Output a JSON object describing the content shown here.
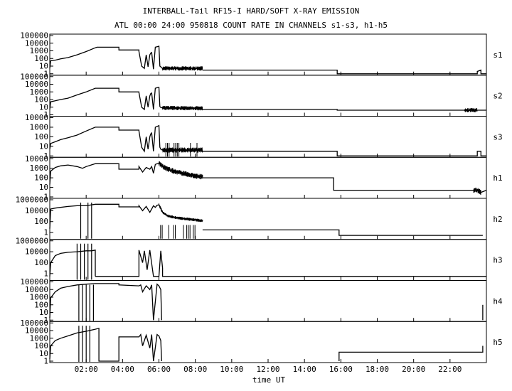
{
  "chart_data": {
    "type": "line",
    "title": "INTERBALL-Tail RF15-I HARD/SOFT X-RAY EMISSION",
    "subtitle": "ATL 00:00 24:00 950818  COUNT RATE IN CHANNELS s1-s3, h1-h5",
    "xlabel": "time UT",
    "xlim": [
      0,
      24
    ],
    "x_ticks": [
      "02:00",
      "04:00",
      "06:00",
      "08:00",
      "10:00",
      "12:00",
      "14:00",
      "16:00",
      "18:00",
      "20:00",
      "22:00"
    ],
    "x_tick_hours": [
      2,
      4,
      6,
      8,
      10,
      12,
      14,
      16,
      18,
      20,
      22
    ],
    "y_scale": "log",
    "panels": [
      {
        "name": "s1",
        "ylim": [
          1,
          100000
        ],
        "y_ticks": [
          "100000",
          "10000",
          "1000",
          "100",
          "10",
          "1"
        ],
        "y_tick_values": [
          100000,
          10000,
          1000,
          100,
          10,
          1
        ],
        "segments": [
          {
            "x": [
              0,
              0.05,
              0.3,
              0.6,
              1.0,
              1.5,
              2.0,
              2.5,
              2.6,
              3.8,
              3.8,
              4.9,
              4.9,
              5.05,
              5.2,
              5.3,
              5.4,
              5.5,
              5.55,
              5.6,
              5.7,
              5.8,
              5.9,
              6.0,
              6.05,
              6.1,
              6.15,
              6.2,
              8.4
            ],
            "y": [
              5,
              50,
              60,
              90,
              130,
              300,
              800,
              2500,
              3000,
              3000,
              1300,
              1300,
              800,
              10,
              5,
              300,
              8,
              300,
              500,
              600,
              4,
              3000,
              3500,
              4000,
              10,
              8,
              6,
              5,
              5
            ],
            "noise": [
              6.2,
              8.4
            ]
          },
          {
            "x": [
              8.4,
              15.8,
              15.8,
              23.5,
              23.5,
              23.7,
              23.7,
              24
            ],
            "y": [
              3,
              3,
              1,
              1,
              2,
              3,
              1,
              1
            ]
          }
        ]
      },
      {
        "name": "s2",
        "ylim": [
          1,
          100000
        ],
        "y_ticks": [
          "100000",
          "10000",
          "1000",
          "100",
          "10",
          "1"
        ],
        "y_tick_values": [
          100000,
          10000,
          1000,
          100,
          10,
          1
        ],
        "segments": [
          {
            "x": [
              0,
              0.05,
              0.3,
              0.6,
              1.0,
              1.5,
              2.0,
              2.5,
              2.6,
              3.8,
              3.8,
              4.9,
              4.9,
              5.05,
              5.2,
              5.3,
              5.4,
              5.5,
              5.55,
              5.6,
              5.7,
              5.8,
              5.9,
              6.0,
              6.05,
              6.1,
              6.2,
              8.4
            ],
            "y": [
              5,
              50,
              70,
              100,
              150,
              400,
              1000,
              3000,
              3000,
              3000,
              1000,
              1000,
              800,
              10,
              5,
              300,
              10,
              300,
              600,
              700,
              5,
              3000,
              3500,
              4000,
              12,
              9,
              8,
              7
            ],
            "noise": [
              6.2,
              8.4
            ]
          },
          {
            "x": [
              8.4,
              15.8,
              15.8,
              22.8,
              23.5,
              24
            ],
            "y": [
              5,
              5,
              4,
              4,
              4,
              4
            ],
            "noise": [
              22.8,
              23.5
            ]
          }
        ]
      },
      {
        "name": "s3",
        "ylim": [
          1,
          10000
        ],
        "y_ticks": [
          "10000",
          "1000",
          "100",
          "10",
          "1"
        ],
        "y_tick_values": [
          10000,
          1000,
          100,
          10,
          1
        ],
        "segments": [
          {
            "x": [
              0,
              0.05,
              0.3,
              0.6,
              1.0,
              1.5,
              2.0,
              2.5,
              2.6,
              3.8,
              3.8,
              4.9,
              4.9,
              5.05,
              5.2,
              5.3,
              5.4,
              5.5,
              5.55,
              5.6,
              5.7,
              5.8,
              5.9,
              6.0,
              6.05,
              6.1,
              6.2,
              8.4
            ],
            "y": [
              5,
              20,
              30,
              50,
              80,
              150,
              400,
              1000,
              1000,
              1000,
              500,
              500,
              400,
              8,
              3,
              100,
              5,
              100,
              200,
              250,
              3,
              1000,
              1200,
              1500,
              8,
              5,
              4,
              4
            ],
            "noise": [
              6.2,
              8.4
            ],
            "spikes_down": [
              6.2,
              8.4
            ]
          },
          {
            "x": [
              8.4,
              15.8,
              15.8,
              23.5,
              23.5,
              23.7,
              23.7,
              24
            ],
            "y": [
              3,
              3,
              1,
              1,
              3,
              3,
              1,
              1
            ]
          }
        ]
      },
      {
        "name": "h1",
        "ylim": [
          1,
          10000
        ],
        "y_ticks": [
          "10000",
          "1000",
          "100",
          "10",
          "1"
        ],
        "y_tick_values": [
          10000,
          1000,
          100,
          10,
          1
        ],
        "segments": [
          {
            "x": [
              0,
              0.05,
              0.3,
              0.6,
              1.0,
              1.5,
              1.8,
              2.0,
              2.5,
              3.8,
              3.8,
              4.9,
              4.9,
              5.1,
              5.3,
              5.5,
              5.6,
              5.7,
              5.8,
              5.9,
              6.0,
              6.2,
              6.5,
              7.0,
              7.5,
              8.0,
              8.4
            ],
            "y": [
              20,
              500,
              1200,
              1800,
              2200,
              1500,
              1000,
              1500,
              3000,
              3000,
              800,
              800,
              1500,
              400,
              1200,
              800,
              1500,
              300,
              2500,
              3000,
              3500,
              1500,
              800,
              400,
              250,
              150,
              130
            ],
            "noise": [
              6.0,
              8.4
            ]
          },
          {
            "x": [
              8.4,
              15.6,
              15.6,
              23.5,
              23.7,
              24
            ],
            "y": [
              100,
              100,
              5,
              5,
              3,
              5
            ],
            "noise": [
              23.3,
              23.7
            ]
          }
        ]
      },
      {
        "name": "h2",
        "ylim": [
          0.1,
          1000000
        ],
        "y_ticks": [
          "1000000",
          "10000",
          "100",
          "1"
        ],
        "y_tick_values": [
          1000000,
          10000,
          100,
          1
        ],
        "segments": [
          {
            "x": [
              0,
              0.05,
              0.3,
              0.6,
              1.0,
              1.5,
              2.0,
              2.5,
              3.8,
              3.8,
              4.9,
              4.9,
              5.1,
              5.3,
              5.5,
              5.7,
              5.8,
              5.9,
              6.0,
              6.2,
              6.5,
              7.0,
              7.5,
              8.0,
              8.4
            ],
            "y": [
              5,
              20000,
              30000,
              40000,
              60000,
              80000,
              80000,
              150000,
              150000,
              50000,
              50000,
              80000,
              10000,
              60000,
              5000,
              80000,
              40000,
              100000,
              120000,
              5000,
              1000,
              500,
              300,
              200,
              150
            ],
            "noise": [
              6.0,
              8.4
            ],
            "spikes_down": [
              6.0,
              8.4
            ],
            "dropouts": [
              1.7,
              2.1,
              2.3
            ]
          },
          {
            "x": [
              8.4,
              15.9,
              15.9,
              23.8
            ],
            "y": [
              3,
              3,
              0.3,
              0.3
            ]
          }
        ]
      },
      {
        "name": "h3",
        "ylim": [
          0.1,
          1000000
        ],
        "y_ticks": [
          "1000000",
          "10000",
          "100",
          "1"
        ],
        "y_tick_values": [
          1000000,
          10000,
          100,
          1
        ],
        "segments": [
          {
            "x": [
              0,
              0.05,
              0.3,
              0.6,
              1.0,
              1.5,
              2.0,
              2.3,
              2.5,
              2.5
            ],
            "y": [
              0.3,
              100,
              2000,
              5000,
              8000,
              10000,
              15000,
              15000,
              20000,
              0.3
            ],
            "dropouts": [
              1.5,
              1.7,
              1.9,
              2.1,
              2.3
            ]
          },
          {
            "x": [
              2.5,
              4.9,
              4.9,
              5.1,
              5.2,
              5.35,
              5.5,
              5.7,
              6.0,
              6.1,
              6.2,
              6.2,
              24
            ],
            "y": [
              0.3,
              0.3,
              20000,
              100,
              15000,
              5,
              20000,
              0.3,
              0.3,
              15000,
              10,
              0.3,
              0.3
            ]
          }
        ]
      },
      {
        "name": "h4",
        "ylim": [
          1,
          100000
        ],
        "y_ticks": [
          "100000",
          "10000",
          "1000",
          "100",
          "10",
          "1"
        ],
        "y_tick_values": [
          100000,
          10000,
          1000,
          100,
          10,
          1
        ],
        "segments": [
          {
            "x": [
              0,
              0.05,
              0.3,
              0.6,
              1.0,
              1.5,
              2.0,
              2.5,
              3.8,
              3.8,
              4.9,
              5.0,
              5.1,
              5.3,
              5.5,
              5.6,
              5.7,
              5.9,
              6.0,
              6.1,
              6.15
            ],
            "y": [
              2,
              800,
              5000,
              15000,
              25000,
              40000,
              50000,
              60000,
              60000,
              40000,
              30000,
              40000,
              5000,
              30000,
              10000,
              40000,
              1,
              50000,
              30000,
              10000,
              1
            ],
            "dropouts": [
              1.6,
              1.8,
              2.0,
              2.2,
              2.4
            ]
          },
          {
            "x": [
              23.8,
              23.8
            ],
            "y": [
              1,
              100
            ]
          }
        ]
      },
      {
        "name": "h5",
        "ylim": [
          1,
          100000
        ],
        "y_ticks": [
          "100000",
          "10000",
          "1000",
          "100",
          "10",
          "1"
        ],
        "y_tick_values": [
          100000,
          10000,
          1000,
          100,
          10,
          1
        ],
        "segments": [
          {
            "x": [
              0,
              0.05,
              0.3,
              0.6,
              1.0,
              1.5,
              2.0,
              2.5,
              2.7,
              2.7,
              3.8,
              3.8,
              4.9,
              5.0,
              5.1,
              5.3,
              5.5,
              5.6,
              5.7,
              5.9,
              6.0,
              6.1,
              6.15
            ],
            "y": [
              2,
              100,
              500,
              1000,
              2000,
              5000,
              8000,
              15000,
              20000,
              1,
              1,
              1500,
              1500,
              3000,
              100,
              2500,
              50,
              3000,
              1,
              3000,
              2000,
              500,
              1
            ],
            "dropouts": [
              1.6,
              1.8,
              2.0,
              2.2
            ]
          },
          {
            "x": [
              15.9,
              15.9,
              23.8,
              23.8
            ],
            "y": [
              1,
              15,
              15,
              100
            ]
          }
        ]
      }
    ]
  }
}
